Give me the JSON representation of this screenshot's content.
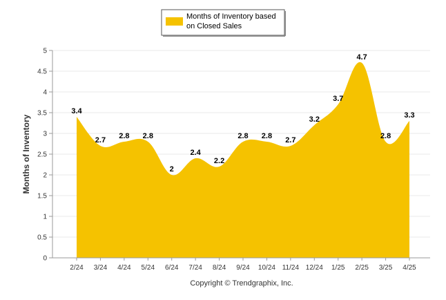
{
  "chart_data": {
    "type": "area",
    "categories": [
      "2/24",
      "3/24",
      "4/24",
      "5/24",
      "6/24",
      "7/24",
      "8/24",
      "9/24",
      "10/24",
      "11/24",
      "12/24",
      "1/25",
      "2/25",
      "3/25",
      "4/25"
    ],
    "series": [
      {
        "name": "Months of Inventory based on Closed Sales",
        "values": [
          3.4,
          2.7,
          2.8,
          2.8,
          2,
          2.4,
          2.2,
          2.8,
          2.8,
          2.7,
          3.2,
          3.7,
          4.7,
          2.8,
          3.3
        ]
      }
    ],
    "data_labels": [
      "3.4",
      "2.7",
      "2.8",
      "2.8",
      "2",
      "2.4",
      "2.2",
      "2.8",
      "2.8",
      "2.7",
      "3.2",
      "3.7",
      "4.7",
      "2.8",
      "3.3"
    ],
    "ylabel": "Months of Inventory",
    "xlabel": "",
    "ylim": [
      0,
      5
    ],
    "yticks": [
      "0",
      "0.5",
      "1",
      "1.5",
      "2",
      "2.5",
      "3",
      "3.5",
      "4",
      "4.5",
      "5"
    ],
    "grid": true,
    "legend": {
      "position": "top-center",
      "lines": [
        "Months of Inventory based",
        "on Closed Sales"
      ]
    },
    "colors": {
      "fill": "#F5C200",
      "grid": "#e8e8e8",
      "axis": "#999999"
    }
  },
  "footer": {
    "copyright": "Copyright © Trendgraphix, Inc."
  }
}
